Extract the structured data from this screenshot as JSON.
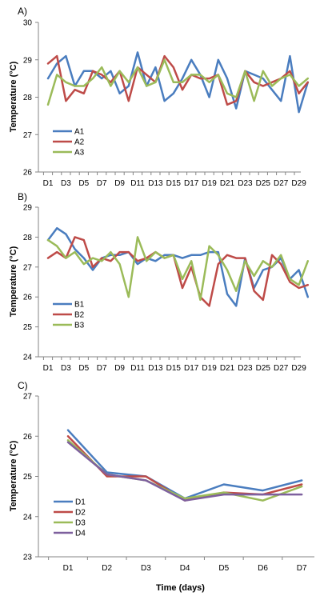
{
  "colors": {
    "blue": "#4a7dbf",
    "red": "#be4b48",
    "green": "#9bbb59",
    "purple": "#7e609e"
  },
  "chart_data": [
    {
      "panel_label": "A)",
      "type": "line",
      "ylabel": "Temperature (°C)",
      "xlabel": "",
      "ylim": [
        26,
        30
      ],
      "yticks": [
        26,
        27,
        28,
        29,
        30
      ],
      "grid": false,
      "legend": "bottom-left",
      "x": [
        "D1",
        "D2",
        "D3",
        "D4",
        "D5",
        "D6",
        "D7",
        "D8",
        "D9",
        "D10",
        "D11",
        "D12",
        "D13",
        "D14",
        "D15",
        "D16",
        "D17",
        "D18",
        "D19",
        "D20",
        "D21",
        "D22",
        "D23",
        "D24",
        "D25",
        "D26",
        "D27",
        "D28",
        "D29",
        "D30"
      ],
      "xtick_labels": [
        "D1",
        "D3",
        "D5",
        "D7",
        "D9",
        "D11",
        "D13",
        "D15",
        "D17",
        "D19",
        "D21",
        "D23",
        "D25",
        "D27",
        "D29"
      ],
      "series": [
        {
          "name": "A1",
          "color": "blue",
          "values": [
            28.5,
            28.9,
            29.1,
            28.3,
            28.7,
            28.7,
            28.5,
            28.7,
            28.1,
            28.3,
            29.2,
            28.3,
            28.8,
            27.9,
            28.1,
            28.5,
            29.0,
            28.6,
            28.0,
            29.0,
            28.5,
            27.7,
            28.7,
            28.6,
            28.5,
            28.2,
            27.9,
            29.1,
            27.6,
            28.4
          ]
        },
        {
          "name": "A2",
          "color": "red",
          "values": [
            28.9,
            29.1,
            27.9,
            28.2,
            28.1,
            28.7,
            28.6,
            28.4,
            28.7,
            27.9,
            28.8,
            28.6,
            28.4,
            29.1,
            28.8,
            28.2,
            28.6,
            28.5,
            28.5,
            28.6,
            27.8,
            27.9,
            28.7,
            28.4,
            28.3,
            28.4,
            28.5,
            28.7,
            28.1,
            28.4
          ]
        },
        {
          "name": "A3",
          "color": "green",
          "values": [
            27.8,
            28.6,
            28.4,
            28.3,
            28.3,
            28.5,
            28.8,
            28.3,
            28.7,
            28.4,
            28.8,
            28.3,
            28.4,
            29.0,
            28.4,
            28.4,
            28.6,
            28.6,
            28.4,
            28.6,
            28.1,
            28.0,
            28.7,
            27.9,
            28.7,
            28.3,
            28.5,
            28.6,
            28.3,
            28.5
          ]
        }
      ]
    },
    {
      "panel_label": "B)",
      "type": "line",
      "ylabel": "Temperature (°C)",
      "xlabel": "",
      "ylim": [
        24,
        29
      ],
      "yticks": [
        24,
        25,
        26,
        27,
        28,
        29
      ],
      "grid": false,
      "legend": "bottom-left",
      "x": [
        "D1",
        "D2",
        "D3",
        "D4",
        "D5",
        "D6",
        "D7",
        "D8",
        "D9",
        "D10",
        "D11",
        "D12",
        "D13",
        "D14",
        "D15",
        "D16",
        "D17",
        "D18",
        "D19",
        "D20",
        "D21",
        "D22",
        "D23",
        "D24",
        "D25",
        "D26",
        "D27",
        "D28",
        "D29",
        "D30"
      ],
      "xtick_labels": [
        "D1",
        "D3",
        "D5",
        "D7",
        "D9",
        "D11",
        "D13",
        "D15",
        "D17",
        "D19",
        "D21",
        "D23",
        "D25",
        "D27",
        "D29"
      ],
      "series": [
        {
          "name": "B1",
          "color": "blue",
          "values": [
            27.9,
            28.3,
            28.1,
            27.6,
            27.3,
            26.9,
            27.3,
            27.4,
            27.4,
            27.5,
            27.1,
            27.3,
            27.2,
            27.4,
            27.4,
            27.3,
            27.4,
            27.4,
            27.5,
            27.5,
            26.1,
            25.7,
            27.3,
            26.3,
            26.9,
            27.0,
            27.3,
            26.6,
            26.9,
            26.0
          ]
        },
        {
          "name": "B2",
          "color": "red",
          "values": [
            27.3,
            27.5,
            27.3,
            28.0,
            27.9,
            27.0,
            27.3,
            27.2,
            27.5,
            27.5,
            27.2,
            27.3,
            27.5,
            27.3,
            27.4,
            26.3,
            27.0,
            26.0,
            25.7,
            27.1,
            27.4,
            27.3,
            27.3,
            26.2,
            25.9,
            27.4,
            27.1,
            26.5,
            26.3,
            26.4
          ]
        },
        {
          "name": "B3",
          "color": "green",
          "values": [
            27.9,
            27.7,
            27.3,
            27.5,
            27.1,
            27.3,
            27.2,
            27.5,
            27.1,
            26.0,
            28.0,
            27.2,
            27.5,
            27.3,
            27.4,
            26.6,
            27.2,
            25.9,
            27.7,
            27.4,
            26.9,
            26.2,
            27.2,
            26.7,
            27.2,
            27.0,
            27.4,
            26.6,
            26.4,
            27.2
          ]
        }
      ]
    },
    {
      "panel_label": "C)",
      "type": "line",
      "ylabel": "Temperature (°C)",
      "xlabel": "Time (days)",
      "ylim": [
        23,
        27
      ],
      "yticks": [
        23,
        24,
        25,
        26,
        27
      ],
      "grid": false,
      "legend": "left",
      "x": [
        "D1",
        "D2",
        "D3",
        "D4",
        "D5",
        "D6",
        "D7"
      ],
      "xtick_labels": [
        "D1",
        "D2",
        "D3",
        "D4",
        "D5",
        "D6",
        "D7"
      ],
      "series": [
        {
          "name": "D1",
          "color": "blue",
          "values": [
            26.15,
            25.1,
            25.0,
            24.45,
            24.8,
            24.65,
            24.9
          ]
        },
        {
          "name": "D2",
          "color": "red",
          "values": [
            26.0,
            25.0,
            25.0,
            24.4,
            24.6,
            24.55,
            24.8
          ]
        },
        {
          "name": "D3",
          "color": "green",
          "values": [
            25.9,
            25.05,
            24.9,
            24.45,
            24.6,
            24.4,
            24.75
          ]
        },
        {
          "name": "D4",
          "color": "purple",
          "values": [
            25.85,
            25.05,
            24.9,
            24.4,
            24.55,
            24.55,
            24.55
          ]
        }
      ]
    }
  ]
}
